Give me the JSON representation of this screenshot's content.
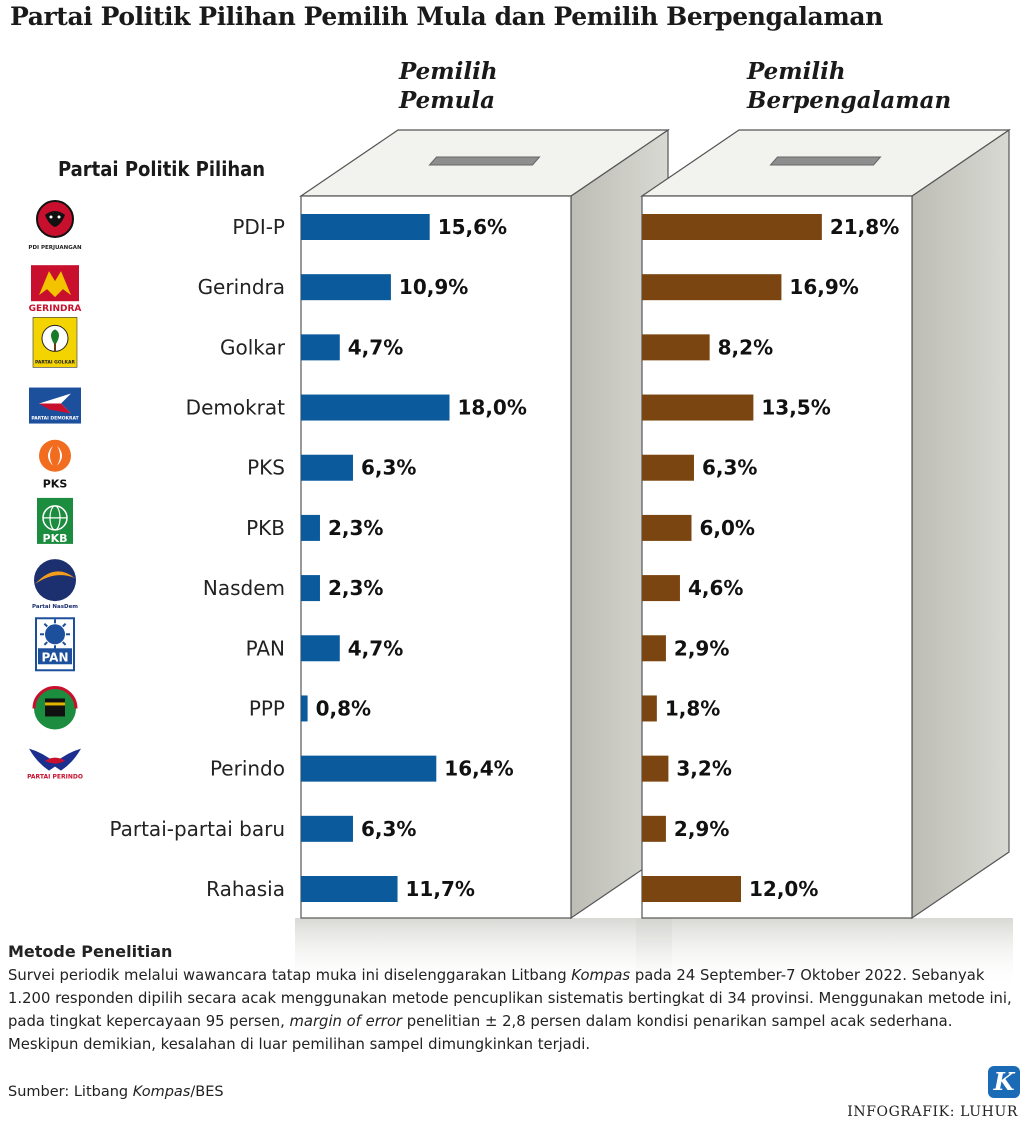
{
  "title": "Partai Politik Pilihan Pemilih Mula dan Pemilih Berpengalaman",
  "section_label": "Partai Politik Pilihan",
  "columns": [
    {
      "line1": "Pemilih",
      "line2": "Pemula"
    },
    {
      "line1": "Pemilih",
      "line2": "Berpengalaman"
    }
  ],
  "colors": {
    "pemula": "#0a5a9c",
    "berpengalaman": "#7a4510"
  },
  "logos": [
    {
      "icon": "pdip-bull-icon",
      "caption": "PDI PERJUANGAN"
    },
    {
      "icon": "gerindra-garuda-icon",
      "caption": "GERINDRA"
    },
    {
      "icon": "golkar-tree-icon",
      "caption": "PARTAI GOLKAR"
    },
    {
      "icon": "demokrat-star-icon",
      "caption": "PARTAI DEMOKRAT"
    },
    {
      "icon": "pks-crescent-icon",
      "caption": "PKS"
    },
    {
      "icon": "pkb-globe-icon",
      "caption": "PKB"
    },
    {
      "icon": "nasdem-circle-icon",
      "caption": "Partai NasDem"
    },
    {
      "icon": "pan-sun-icon",
      "caption": "PAN"
    },
    {
      "icon": "ppp-kaaba-icon",
      "caption": ""
    },
    {
      "icon": "perindo-eagle-icon",
      "caption": "PARTAI PERINDO"
    },
    {
      "icon": "",
      "caption": ""
    },
    {
      "icon": "",
      "caption": ""
    }
  ],
  "chart_data": {
    "type": "bar",
    "orientation": "horizontal",
    "categories": [
      "PDI-P",
      "Gerindra",
      "Golkar",
      "Demokrat",
      "PKS",
      "PKB",
      "Nasdem",
      "PAN",
      "PPP",
      "Perindo",
      "Partai-partai baru",
      "Rahasia"
    ],
    "series": [
      {
        "name": "Pemilih Pemula",
        "values": [
          15.6,
          10.9,
          4.7,
          18.0,
          6.3,
          2.3,
          2.3,
          4.7,
          0.8,
          16.4,
          6.3,
          11.7
        ],
        "labels": [
          "15,6%",
          "10,9%",
          "4,7%",
          "18,0%",
          "6,3%",
          "2,3%",
          "2,3%",
          "4,7%",
          "0,8%",
          "16,4%",
          "6,3%",
          "11,7%"
        ]
      },
      {
        "name": "Pemilih Berpengalaman",
        "values": [
          21.8,
          16.9,
          8.2,
          13.5,
          6.3,
          6.0,
          4.6,
          2.9,
          1.8,
          3.2,
          2.9,
          12.0
        ],
        "labels": [
          "21,8%",
          "16,9%",
          "8,2%",
          "13,5%",
          "6,3%",
          "6,0%",
          "4,6%",
          "2,9%",
          "1,8%",
          "3,2%",
          "2,9%",
          "12,0%"
        ]
      }
    ],
    "unit": "%",
    "grid": false,
    "legend": "none"
  },
  "methods": {
    "title": "Metode Penelitian",
    "p1_a": "Survei periodik melalui wawancara tatap muka ini diselenggarakan Litbang ",
    "p1_em": "Kompas",
    "p1_b": " pada 24 September-7 Oktober 2022. Sebanyak 1.200 responden dipilih secara acak menggunakan metode pencuplikan sistematis bertingkat di 34 provinsi. Menggunakan metode ini, pada tingkat kepercayaan 95 persen, ",
    "p1_em2": "margin of error",
    "p1_c": " penelitian ± 2,8 persen dalam kondisi penarikan sampel acak sederhana. Meskipun demikian, kesalahan di luar pemilihan sampel dimungkinkan terjadi."
  },
  "source": {
    "prefix": "Sumber: Litbang ",
    "em": "Kompas",
    "suffix": "/BES"
  },
  "credit": "INFOGRAFIK: LUHUR",
  "brand_logo": "K"
}
